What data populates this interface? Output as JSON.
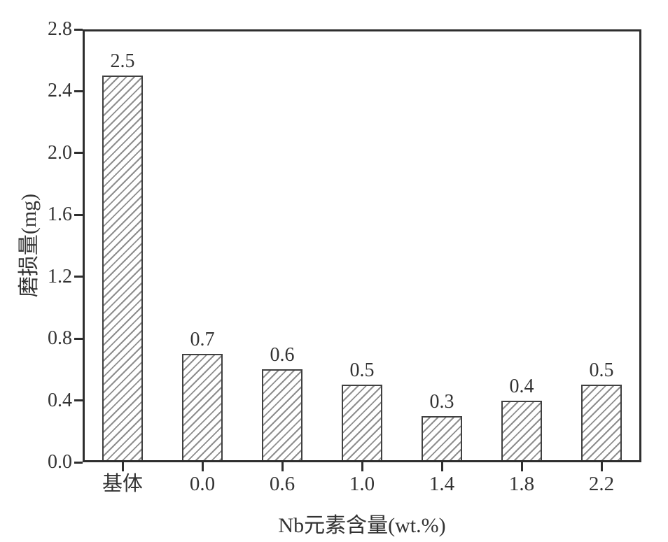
{
  "chart_data": {
    "type": "bar",
    "title": "",
    "categories": [
      "基体",
      "0.0",
      "0.6",
      "1.0",
      "1.4",
      "1.8",
      "2.2"
    ],
    "values": [
      2.5,
      0.7,
      0.6,
      0.5,
      0.3,
      0.4,
      0.5
    ],
    "bar_value_labels": [
      "2.5",
      "0.7",
      "0.6",
      "0.5",
      "0.3",
      "0.4",
      "0.5"
    ],
    "xlabel": "Nb元素含量(wt.%)",
    "ylabel": "磨损量(mg)",
    "ylim": [
      0,
      2.8
    ],
    "ytick_step": 0.4,
    "yticks": [
      "0.0",
      "0.4",
      "0.8",
      "1.2",
      "1.6",
      "2.0",
      "2.4",
      "2.8"
    ],
    "grid": false,
    "legend": false,
    "bar_style": {
      "fill": "#ffffff",
      "hatch": "diagonal-forward-slash",
      "hatch_color": "#8e8e8e",
      "border_color": "#404040"
    },
    "axis_color": "#2e2e2e",
    "text_color": "#333333",
    "background": "#ffffff"
  }
}
